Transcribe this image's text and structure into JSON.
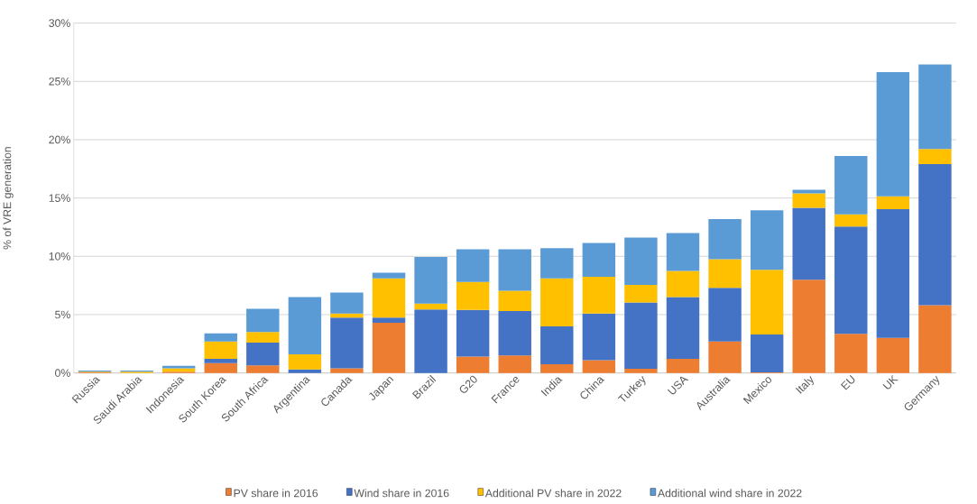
{
  "chart_data": {
    "type": "bar",
    "stacked": true,
    "ylabel": "% of VRE generation",
    "categories": [
      "Russia",
      "Saudi Arabia",
      "Indonesia",
      "South Korea",
      "South Africa",
      "Argentina",
      "Canada",
      "Japan",
      "Brazil",
      "G20",
      "France",
      "India",
      "China",
      "Turkey",
      "USA",
      "Australia",
      "Mexico",
      "Italy",
      "EU",
      "UK",
      "Germany"
    ],
    "series": [
      {
        "name": "PV share in 2016",
        "color": "#ed7d31",
        "values": [
          0.05,
          0,
          0.1,
          0.85,
          0.65,
          0,
          0.4,
          4.3,
          0,
          1.4,
          1.5,
          0.75,
          1.1,
          0.35,
          1.2,
          2.7,
          0.05,
          8.0,
          3.35,
          3.0,
          5.8
        ]
      },
      {
        "name": "Wind share in 2016",
        "color": "#4472c4",
        "values": [
          0,
          0,
          0,
          0.35,
          1.95,
          0.3,
          4.35,
          0.45,
          5.45,
          4.0,
          3.8,
          3.25,
          4.0,
          5.7,
          5.3,
          4.6,
          3.25,
          6.15,
          9.2,
          11.05,
          12.1
        ]
      },
      {
        "name": "Additional PV share in 2022",
        "color": "#ffc000",
        "values": [
          0.05,
          0.1,
          0.3,
          1.5,
          0.9,
          1.3,
          0.35,
          3.35,
          0.5,
          2.4,
          1.75,
          4.1,
          3.15,
          1.5,
          2.25,
          2.45,
          5.55,
          1.25,
          1.05,
          1.1,
          1.3
        ]
      },
      {
        "name": "Additional wind share in 2022",
        "color": "#5b9bd5",
        "values": [
          0.1,
          0.1,
          0.2,
          0.7,
          2.0,
          4.9,
          1.8,
          0.5,
          4.0,
          2.8,
          3.55,
          2.6,
          2.9,
          4.05,
          3.25,
          3.45,
          5.1,
          0.3,
          5.0,
          10.65,
          7.25
        ]
      }
    ],
    "ylim": [
      0,
      30
    ],
    "yticks": [
      {
        "value": 0,
        "label": "0%"
      },
      {
        "value": 5,
        "label": "5%"
      },
      {
        "value": 10,
        "label": "10%"
      },
      {
        "value": 15,
        "label": "15%"
      },
      {
        "value": 20,
        "label": "20%"
      },
      {
        "value": 25,
        "label": "25%"
      },
      {
        "value": 30,
        "label": "30%"
      }
    ],
    "grid": "y",
    "legend": "bottom"
  }
}
